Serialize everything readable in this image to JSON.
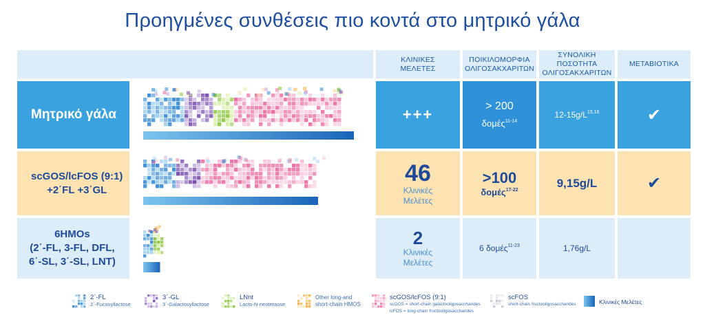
{
  "title": "Προηγμένες συνθέσεις πιο κοντά στο μητρικό γάλα",
  "headers": {
    "clinical": [
      "ΚΛΙΝΙΚΕΣ",
      "ΜΕΛΕΤΕΣ"
    ],
    "diversity": [
      "ΠΟΙΚΙΛΟΜΟΡΦΙΑ",
      "ΟΛΙΓΟΣΑΚΧΑΡΙΤΩΝ"
    ],
    "total": [
      "ΣΥΝΟΛΙΚΗ ΠΟΣΟΤΗΤΑ",
      "ΟΛΙΓΟΣΑΚΧΑΡΙΤΩΝ"
    ],
    "metabiotics": "ΜΕΤΑΒΙΟΤΙΚΑ"
  },
  "rows": [
    {
      "label_lines": [
        "Μητρικό γάλα"
      ],
      "clinical": "+++",
      "diversity_main": "> 200",
      "diversity_unit": "δομές",
      "diversity_ref": "11-14",
      "total": "12-15g/L",
      "total_ref": "15,16",
      "metabiotics": "✔"
    },
    {
      "label_lines": [
        "scGOS/lcFOS (9:1)",
        "+2΄FL +3΄GL"
      ],
      "clinical_number": "46",
      "clinical_sub": [
        "Κλινικές",
        "Μελέτες"
      ],
      "diversity_main": ">100",
      "diversity_unit": "δομές",
      "diversity_ref": "17-22",
      "total": "9,15g/L",
      "metabiotics": "✔"
    },
    {
      "label_lines": [
        "6HMOs",
        "(2΄-FL, 3-FL, DFL,",
        "6΄-SL, 3΄-SL, LNT)"
      ],
      "clinical_number": "2",
      "clinical_sub": [
        "Κλινικές",
        "Μελέτες"
      ],
      "diversity_text": "6 δομές",
      "diversity_ref": "11-23",
      "total": "1,76g/L"
    }
  ],
  "legend": [
    {
      "name": "2΄-FL",
      "desc": "2΄-Fucosyllactose",
      "color": "#3d8fd6",
      "color2": "#9fd0f0"
    },
    {
      "name": "3΄-GL",
      "desc": "3΄-Galactosyllactose",
      "color": "#7a4fb0",
      "color2": "#c4aee0"
    },
    {
      "name": "LNnt",
      "desc": "Lacto-N-neoteraose",
      "color": "#8cc63f",
      "color2": "#d8eca8"
    },
    {
      "name": "Other long-and",
      "desc": "short-chain HMOS",
      "color": "#f5b34a",
      "color2": "#fbe0a8"
    },
    {
      "name": "scGOS/lcFOS (9:1)",
      "desc": "scGOS = short-chain galactooligosaccharides",
      "desc2": "lcFOS = long-chain fructooligosaccharides",
      "color": "#ec6fa2",
      "color2": "#f9c2d8"
    },
    {
      "name": "scFOS",
      "desc": "short-chain fructooligosaccharides",
      "color": "#b9bec6",
      "color2": "#e4e6ea"
    },
    {
      "name": "Κλινικές Μελέτες",
      "color": "#1a64b8",
      "color2": "#7cc4ee"
    }
  ],
  "bars": {
    "row1_study_fraction": 1.0,
    "row2_study_fraction": 0.83,
    "row3_study_fraction": 0.08
  },
  "colors": {
    "title": "#1f4fa0",
    "row1": "#3aa2df",
    "row2": "#fce3b1",
    "row3": "#dcedf9",
    "header": "#dcedf9"
  }
}
